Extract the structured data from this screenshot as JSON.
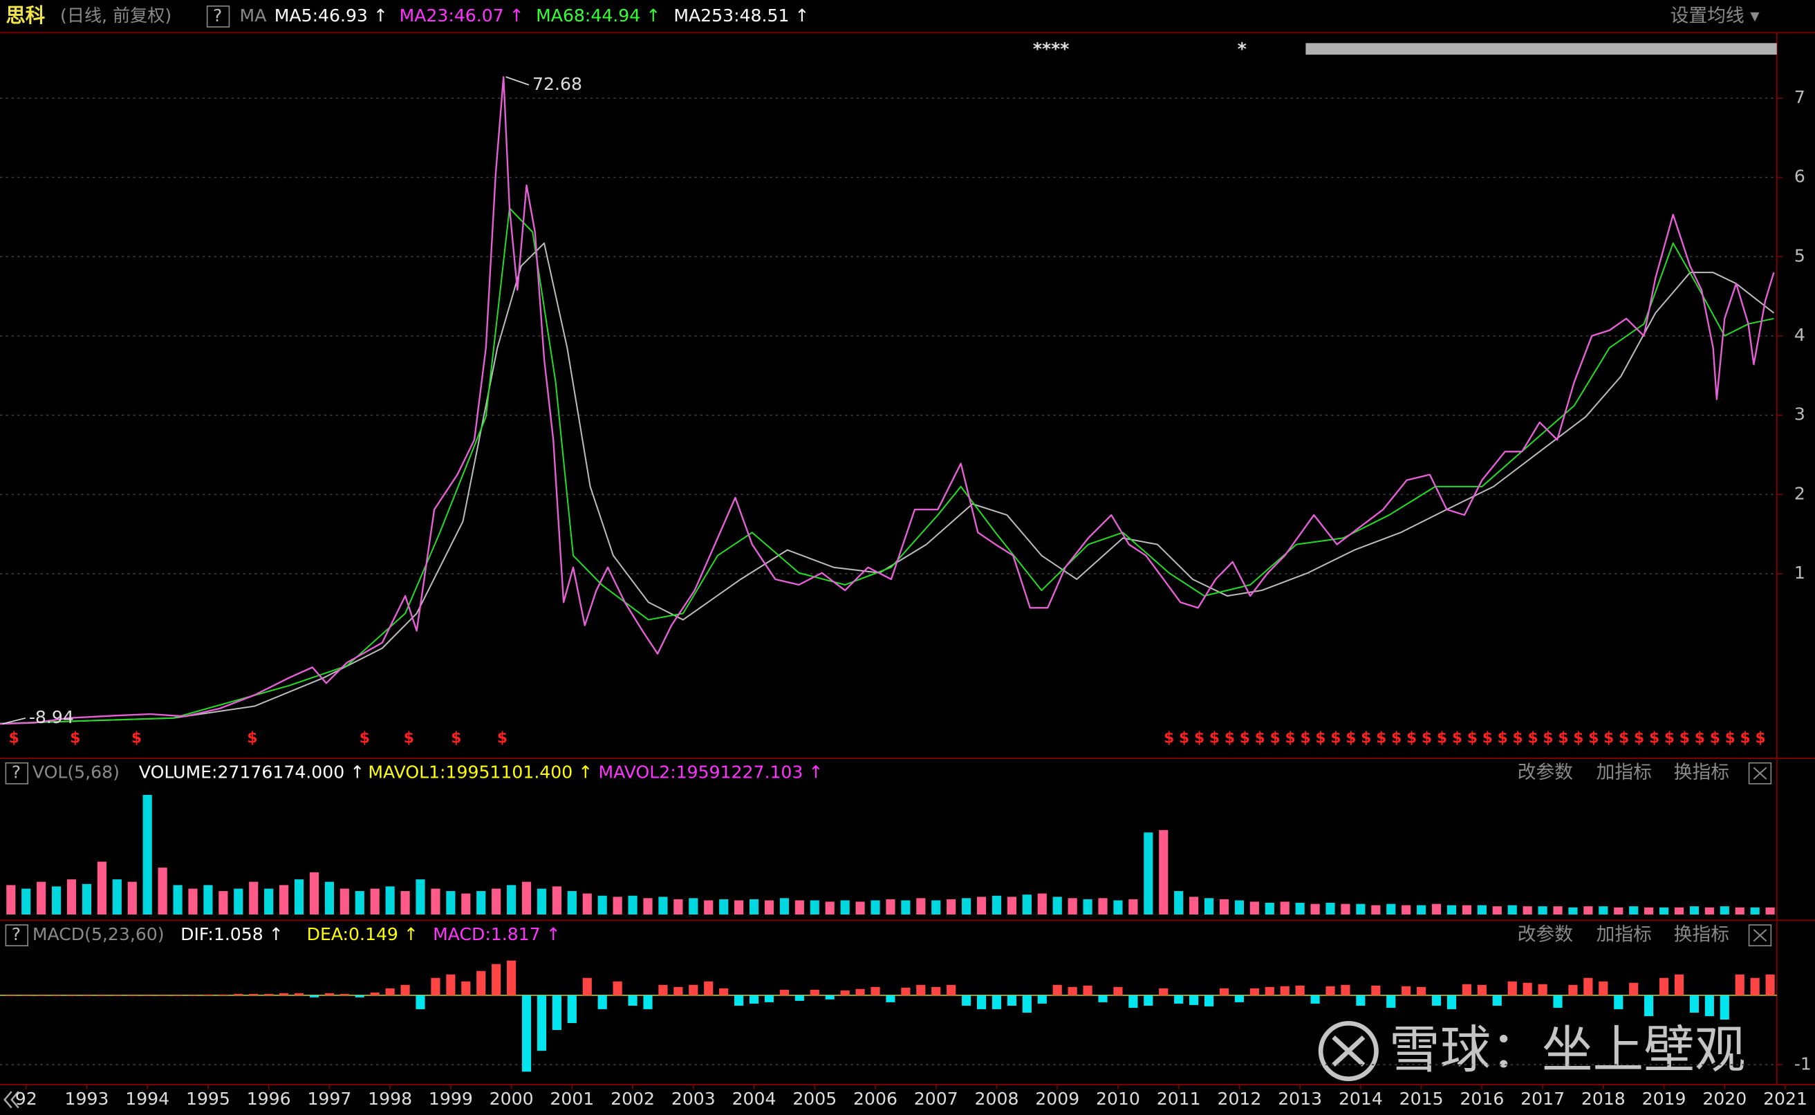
{
  "chart_data": [
    {
      "type": "line",
      "header": {
        "items": [
          {
            "text": "思科",
            "color": "#f0e44a"
          },
          {
            "text": "(日线, 前复权)",
            "color": "#8a8a8a"
          },
          {
            "text": "?",
            "color": "#bbbbbb",
            "boxed": true
          },
          {
            "text": "MA",
            "color": "#8a8a8a"
          },
          {
            "text": "MA5:46.93 ↑",
            "color": "#ffffff"
          },
          {
            "text": "MA23:46.07 ↑",
            "color": "#ff33ff"
          },
          {
            "text": "MA68:44.94 ↑",
            "color": "#33ff33"
          },
          {
            "text": "MA253:48.51 ↑",
            "color": "#ffffff"
          }
        ],
        "buttons": [
          "设置均线 ▾"
        ]
      },
      "top_markers": [
        "****",
        "*"
      ],
      "xlim": [
        1991.57,
        2020.86
      ],
      "ylim": [
        -12.55,
        78.25
      ],
      "yticks": [
        {
          "value": 70,
          "label": "7"
        },
        {
          "value": 60,
          "label": "6"
        },
        {
          "value": 50,
          "label": "5"
        },
        {
          "value": 40,
          "label": "4"
        },
        {
          "value": 30,
          "label": "3"
        },
        {
          "value": 20,
          "label": "2"
        },
        {
          "value": 10,
          "label": "1"
        }
      ],
      "series": [
        {
          "color": "#bdbdbd",
          "x": [
            1991.57,
            1994.43,
            1995.77,
            1996.91,
            1997.87,
            1998.44,
            1999.2,
            1999.77,
            2000.16,
            2000.54,
            2000.92,
            2001.3,
            2001.68,
            2002.26,
            2002.83,
            2003.78,
            2004.55,
            2005.31,
            2006.07,
            2006.84,
            2007.6,
            2008.17,
            2008.74,
            2009.32,
            2010.08,
            2010.65,
            2011.23,
            2011.8,
            2012.37,
            2013.13,
            2013.9,
            2014.66,
            2015.42,
            2016.19,
            2016.95,
            2017.71,
            2018.29,
            2018.86,
            2019.43,
            2019.81,
            2020.19,
            2020.81
          ],
          "values": [
            -8.9,
            -8.2,
            -6.7,
            -3.1,
            0.6,
            5.0,
            16.6,
            38.5,
            48.8,
            51.7,
            38.5,
            21.0,
            12.3,
            6.4,
            4.2,
            9.3,
            13.0,
            10.8,
            10.1,
            13.7,
            18.8,
            17.4,
            12.3,
            9.3,
            14.5,
            13.7,
            9.3,
            7.2,
            7.9,
            10.1,
            13.0,
            15.2,
            18.1,
            21.0,
            25.4,
            29.8,
            34.9,
            42.9,
            48.0,
            48.0,
            46.6,
            42.9
          ]
        },
        {
          "color": "#22dd22",
          "x": [
            1991.57,
            1994.43,
            1996.34,
            1997.29,
            1998.25,
            1998.82,
            1999.58,
            1999.97,
            2000.35,
            2000.73,
            2001.02,
            2001.49,
            2002.26,
            2002.83,
            2003.4,
            2003.97,
            2004.74,
            2005.5,
            2006.26,
            2007.03,
            2007.41,
            2007.98,
            2008.74,
            2009.51,
            2010.08,
            2010.84,
            2011.42,
            2012.18,
            2012.94,
            2013.71,
            2014.47,
            2015.23,
            2016.0,
            2016.76,
            2017.52,
            2018.1,
            2018.67,
            2019.15,
            2019.53,
            2020.0,
            2020.39,
            2020.81
          ],
          "values": [
            -8.9,
            -8.2,
            -4.1,
            -1.6,
            5.0,
            15.2,
            29.8,
            56.1,
            53.1,
            34.2,
            12.3,
            8.6,
            4.2,
            5.0,
            12.3,
            15.2,
            10.1,
            8.6,
            10.8,
            17.4,
            21.0,
            15.2,
            7.9,
            13.7,
            15.2,
            10.1,
            7.2,
            8.6,
            13.7,
            14.5,
            17.4,
            21.0,
            21.0,
            26.1,
            31.2,
            38.5,
            41.5,
            51.7,
            46.6,
            40.0,
            41.5,
            42.2
          ]
        },
        {
          "color": "#e860d8",
          "x": [
            1991.57,
            1992.14,
            1992.71,
            1993.48,
            1994.05,
            1994.62,
            1995.19,
            1995.77,
            1996.34,
            1996.72,
            1996.95,
            1997.29,
            1997.87,
            1998.25,
            1998.44,
            1998.73,
            1999.11,
            1999.39,
            1999.58,
            1999.74,
            1999.87,
            1999.97,
            2000.1,
            2000.25,
            2000.39,
            2000.54,
            2000.69,
            2000.86,
            2001.02,
            2001.21,
            2001.4,
            2001.59,
            2001.87,
            2002.16,
            2002.41,
            2002.64,
            2003.02,
            2003.4,
            2003.69,
            2003.97,
            2004.35,
            2004.74,
            2005.12,
            2005.5,
            2005.88,
            2006.26,
            2006.65,
            2007.03,
            2007.41,
            2007.69,
            2007.98,
            2008.27,
            2008.55,
            2008.84,
            2009.13,
            2009.51,
            2009.89,
            2010.18,
            2010.46,
            2010.75,
            2011.03,
            2011.32,
            2011.61,
            2011.89,
            2012.18,
            2012.47,
            2012.75,
            2013.23,
            2013.61,
            2013.99,
            2014.37,
            2014.76,
            2015.14,
            2015.42,
            2015.71,
            2016.0,
            2016.38,
            2016.66,
            2016.95,
            2017.24,
            2017.52,
            2017.81,
            2018.1,
            2018.38,
            2018.67,
            2018.86,
            2019.15,
            2019.43,
            2019.62,
            2019.81,
            2019.87,
            2020.0,
            2020.19,
            2020.39,
            2020.48,
            2020.67,
            2020.81
          ],
          "values": [
            -8.94,
            -8.8,
            -8.2,
            -7.9,
            -7.7,
            -8.0,
            -7.0,
            -5.3,
            -3.1,
            -1.8,
            -3.8,
            -1.2,
            1.3,
            7.2,
            2.8,
            18.1,
            22.5,
            26.9,
            38.5,
            60.4,
            72.68,
            56.1,
            45.8,
            59.0,
            53.1,
            37.1,
            26.9,
            6.4,
            10.8,
            3.5,
            7.9,
            10.8,
            6.4,
            2.8,
            -0.1,
            3.5,
            7.9,
            14.5,
            19.6,
            13.7,
            9.3,
            8.6,
            10.1,
            7.9,
            10.8,
            9.3,
            18.1,
            18.1,
            23.9,
            15.2,
            13.7,
            12.3,
            5.7,
            5.7,
            10.8,
            14.5,
            17.4,
            13.7,
            12.3,
            9.3,
            6.4,
            5.7,
            9.3,
            11.5,
            7.2,
            10.1,
            12.3,
            17.4,
            13.7,
            15.9,
            18.1,
            21.8,
            22.5,
            18.1,
            17.4,
            21.8,
            25.4,
            25.4,
            29.1,
            26.9,
            34.2,
            40.0,
            40.7,
            42.2,
            40.0,
            47.3,
            55.3,
            48.8,
            45.8,
            38.5,
            32.0,
            42.2,
            46.6,
            41.5,
            36.4,
            44.4,
            48.0
          ]
        }
      ],
      "annotations": [
        {
          "x": 1999.87,
          "value": 72.68
        },
        {
          "x": 1991.57,
          "value": -8.94
        }
      ],
      "dividend_symbol": "$",
      "dividend_color": "#ff2020",
      "dividend_x": [
        1991.8,
        1992.81,
        1993.82,
        1995.73,
        1997.58,
        1998.31,
        1999.09,
        1999.85,
        2010.84,
        2011.09,
        2011.34,
        2011.59,
        2011.84,
        2012.09,
        2012.34,
        2012.59,
        2012.84,
        2013.09,
        2013.34,
        2013.59,
        2013.84,
        2014.09,
        2014.34,
        2014.59,
        2014.84,
        2015.09,
        2015.34,
        2015.59,
        2015.84,
        2016.09,
        2016.34,
        2016.59,
        2016.84,
        2017.09,
        2017.34,
        2017.59,
        2017.84,
        2018.09,
        2018.34,
        2018.59,
        2018.84,
        2019.09,
        2019.34,
        2019.59,
        2019.84,
        2020.09,
        2020.34,
        2020.59
      ]
    },
    {
      "type": "bar",
      "header": {
        "items": [
          {
            "text": "?",
            "color": "#bbbbbb",
            "boxed": true
          },
          {
            "text": "VOL(5,68)",
            "color": "#8a8a8a"
          },
          {
            "text": "VOLUME:27176174.000 ↑",
            "color": "#ffffff"
          },
          {
            "text": "MAVOL1:19951101.400 ↑",
            "color": "#ffff00"
          },
          {
            "text": "MAVOL2:19591227.103 ↑",
            "color": "#ff33ff"
          }
        ],
        "buttons": [
          "改参数",
          "加指标",
          "换指标"
        ],
        "closable": true
      },
      "xlim": [
        1991.57,
        2020.86
      ],
      "ylim": [
        0,
        560000000
      ],
      "colors": [
        "#ff5a8a",
        "#00d8e0"
      ],
      "x": [
        1991.75,
        1992,
        1992.25,
        1992.5,
        1992.75,
        1993,
        1993.25,
        1993.5,
        1993.75,
        1994,
        1994.25,
        1994.5,
        1994.75,
        1995,
        1995.25,
        1995.5,
        1995.75,
        1996,
        1996.25,
        1996.5,
        1996.75,
        1997,
        1997.25,
        1997.5,
        1997.75,
        1998,
        1998.25,
        1998.5,
        1998.75,
        1999,
        1999.25,
        1999.5,
        1999.75,
        2000,
        2000.25,
        2000.5,
        2000.75,
        2001,
        2001.25,
        2001.5,
        2001.75,
        2002,
        2002.25,
        2002.5,
        2002.75,
        2003,
        2003.25,
        2003.5,
        2003.75,
        2004,
        2004.25,
        2004.5,
        2004.75,
        2005,
        2005.25,
        2005.5,
        2005.75,
        2006,
        2006.25,
        2006.5,
        2006.75,
        2007,
        2007.25,
        2007.5,
        2007.75,
        2008,
        2008.25,
        2008.5,
        2008.75,
        2009,
        2009.25,
        2009.5,
        2009.75,
        2010,
        2010.25,
        2010.5,
        2010.75,
        2011,
        2011.25,
        2011.5,
        2011.75,
        2012,
        2012.25,
        2012.5,
        2012.75,
        2013,
        2013.25,
        2013.5,
        2013.75,
        2014,
        2014.25,
        2014.5,
        2014.75,
        2015,
        2015.25,
        2015.5,
        2015.75,
        2016,
        2016.25,
        2016.5,
        2016.75,
        2017,
        2017.25,
        2017.5,
        2017.75,
        2018,
        2018.25,
        2018.5,
        2018.75,
        2019,
        2019.25,
        2019.5,
        2019.75,
        2020,
        2020.25,
        2020.5,
        2020.75
      ],
      "values": [
        133000000,
        117000000,
        148000000,
        127000000,
        159000000,
        138000000,
        239000000,
        159000000,
        148000000,
        541000000,
        212000000,
        133000000,
        117000000,
        133000000,
        106000000,
        117000000,
        148000000,
        117000000,
        133000000,
        159000000,
        191000000,
        148000000,
        117000000,
        106000000,
        117000000,
        127000000,
        106000000,
        159000000,
        117000000,
        106000000,
        95000000,
        106000000,
        117000000,
        133000000,
        148000000,
        117000000,
        127000000,
        106000000,
        95000000,
        85000000,
        80000000,
        85000000,
        74000000,
        80000000,
        69000000,
        74000000,
        64000000,
        69000000,
        64000000,
        69000000,
        64000000,
        74000000,
        64000000,
        64000000,
        58000000,
        64000000,
        58000000,
        64000000,
        69000000,
        64000000,
        74000000,
        64000000,
        69000000,
        74000000,
        80000000,
        85000000,
        80000000,
        90000000,
        95000000,
        80000000,
        74000000,
        69000000,
        74000000,
        64000000,
        69000000,
        371000000,
        382000000,
        106000000,
        80000000,
        74000000,
        69000000,
        64000000,
        58000000,
        53000000,
        58000000,
        53000000,
        48000000,
        53000000,
        48000000,
        48000000,
        42000000,
        48000000,
        42000000,
        42000000,
        48000000,
        42000000,
        42000000,
        42000000,
        37000000,
        42000000,
        37000000,
        37000000,
        37000000,
        32000000,
        37000000,
        37000000,
        32000000,
        37000000,
        32000000,
        32000000,
        32000000,
        37000000,
        32000000,
        37000000,
        32000000,
        32000000,
        32000000
      ]
    },
    {
      "type": "bar",
      "header": {
        "items": [
          {
            "text": "?",
            "color": "#bbbbbb",
            "boxed": true
          },
          {
            "text": "MACD(5,23,60)",
            "color": "#8a8a8a"
          },
          {
            "text": "DIF:1.058 ↑",
            "color": "#ffffff"
          },
          {
            "text": "DEA:0.149 ↑",
            "color": "#ffff00"
          },
          {
            "text": "MACD:1.817 ↑",
            "color": "#ff33ff"
          }
        ],
        "buttons": [
          "改参数",
          "加指标",
          "换指标"
        ],
        "closable": true
      },
      "xlim": [
        1991.57,
        2020.86
      ],
      "ylim": [
        -11.7,
        6.3
      ],
      "yticks": [
        {
          "value": -10,
          "label": "-1"
        }
      ],
      "up_color": "#ff4444",
      "down_color": "#00e5ee",
      "x": [
        1991.75,
        1992,
        1992.25,
        1992.5,
        1992.75,
        1993,
        1993.25,
        1993.5,
        1993.75,
        1994,
        1994.25,
        1994.5,
        1994.75,
        1995,
        1995.25,
        1995.5,
        1995.75,
        1996,
        1996.25,
        1996.5,
        1996.75,
        1997,
        1997.25,
        1997.5,
        1997.75,
        1998,
        1998.25,
        1998.5,
        1998.75,
        1999,
        1999.25,
        1999.5,
        1999.75,
        2000,
        2000.25,
        2000.5,
        2000.75,
        2001,
        2001.25,
        2001.5,
        2001.75,
        2002,
        2002.25,
        2002.5,
        2002.75,
        2003,
        2003.25,
        2003.5,
        2003.75,
        2004,
        2004.25,
        2004.5,
        2004.75,
        2005,
        2005.25,
        2005.5,
        2005.75,
        2006,
        2006.25,
        2006.5,
        2006.75,
        2007,
        2007.25,
        2007.5,
        2007.75,
        2008,
        2008.25,
        2008.5,
        2008.75,
        2009,
        2009.25,
        2009.5,
        2009.75,
        2010,
        2010.25,
        2010.5,
        2010.75,
        2011,
        2011.25,
        2011.5,
        2011.75,
        2012,
        2012.25,
        2012.5,
        2012.75,
        2013,
        2013.25,
        2013.5,
        2013.75,
        2014,
        2014.25,
        2014.5,
        2014.75,
        2015,
        2015.25,
        2015.5,
        2015.75,
        2016,
        2016.25,
        2016.5,
        2016.75,
        2017,
        2017.25,
        2017.5,
        2017.75,
        2018,
        2018.25,
        2018.5,
        2018.75,
        2019,
        2019.25,
        2019.5,
        2019.75,
        2020,
        2020.25,
        2020.5,
        2020.75
      ],
      "values": [
        0,
        0,
        0,
        0,
        0,
        0,
        0,
        0,
        0,
        0,
        0,
        0,
        0,
        0.1,
        0.1,
        0.2,
        0.2,
        0.2,
        0.3,
        0.3,
        -0.3,
        0.3,
        0.2,
        -0.3,
        0.4,
        1.0,
        1.5,
        -2.0,
        2.5,
        3.0,
        2.0,
        3.5,
        4.5,
        5.0,
        -11.0,
        -8.0,
        -5.0,
        -4.0,
        2.5,
        -2.0,
        2.0,
        -1.5,
        -2.0,
        1.5,
        1.2,
        1.5,
        2.0,
        1.0,
        -1.5,
        -1.2,
        -1.0,
        0.8,
        -0.8,
        0.8,
        -0.6,
        0.7,
        0.9,
        1.2,
        -1.0,
        1.1,
        1.5,
        1.2,
        1.5,
        -1.5,
        -2.0,
        -2.0,
        -1.5,
        -2.5,
        -1.2,
        1.5,
        1.2,
        1.4,
        -1.0,
        1.2,
        -1.8,
        -1.5,
        1.0,
        -1.2,
        -1.4,
        -1.6,
        1.0,
        -1.0,
        1.0,
        1.2,
        1.3,
        1.4,
        -1.2,
        1.3,
        1.5,
        -1.5,
        1.4,
        -1.8,
        1.3,
        1.2,
        -1.5,
        -2.0,
        1.6,
        1.5,
        -1.5,
        2.0,
        1.8,
        1.6,
        -1.8,
        1.5,
        2.5,
        2.0,
        -2.0,
        1.8,
        -3.0,
        2.5,
        3.0,
        -2.5,
        -3.0,
        -3.5,
        3.0,
        2.5,
        3.0
      ],
      "xticks": [
        {
          "value": 1992,
          "label": "92"
        },
        1993,
        1994,
        1995,
        1996,
        1997,
        1998,
        1999,
        2000,
        2001,
        2002,
        2003,
        2004,
        2005,
        2006,
        2007,
        2008,
        2009,
        2010,
        2011,
        2012,
        2013,
        2014,
        2015,
        2016,
        2017,
        2018,
        2019,
        2020,
        2021
      ]
    }
  ],
  "watermark": "雪球：坐上壁观"
}
